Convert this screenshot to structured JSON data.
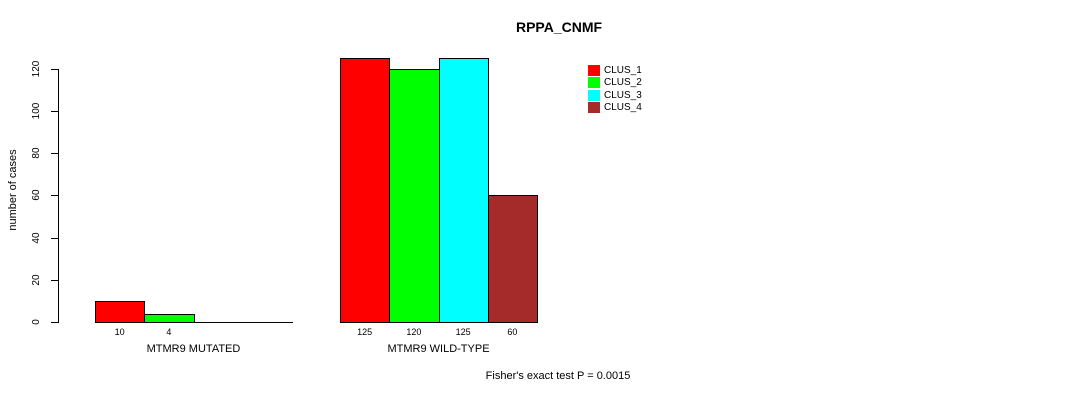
{
  "title": "RPPA_CNMF",
  "ylabel": "number of cases",
  "footnote": "Fisher's exact test P = 0.0015",
  "legend": {
    "position": "top-right",
    "items": [
      {
        "label": "CLUS_1",
        "color": "#FF0000"
      },
      {
        "label": "CLUS_2",
        "color": "#00FF00"
      },
      {
        "label": "CLUS_3",
        "color": "#00FFFF"
      },
      {
        "label": "CLUS_4",
        "color": "#A52A2A"
      }
    ]
  },
  "chart_data": {
    "type": "bar",
    "title": "RPPA_CNMF",
    "xlabel": "",
    "ylabel": "number of cases",
    "categories": [
      "MTMR9 MUTATED",
      "MTMR9 WILD-TYPE"
    ],
    "series": [
      {
        "name": "CLUS_1",
        "color": "#FF0000",
        "values": [
          10,
          125
        ]
      },
      {
        "name": "CLUS_2",
        "color": "#00FF00",
        "values": [
          4,
          120
        ]
      },
      {
        "name": "CLUS_3",
        "color": "#00FFFF",
        "values": [
          0,
          125
        ]
      },
      {
        "name": "CLUS_4",
        "color": "#A52A2A",
        "values": [
          0,
          60
        ]
      }
    ],
    "bar_value_labels_shown_for_nonzero_only": true,
    "yticks": [
      0,
      20,
      40,
      60,
      80,
      100,
      120
    ],
    "ylim": [
      0,
      125
    ],
    "grid": false,
    "legend_position": "top-right",
    "annotation": "Fisher's exact test P = 0.0015"
  }
}
